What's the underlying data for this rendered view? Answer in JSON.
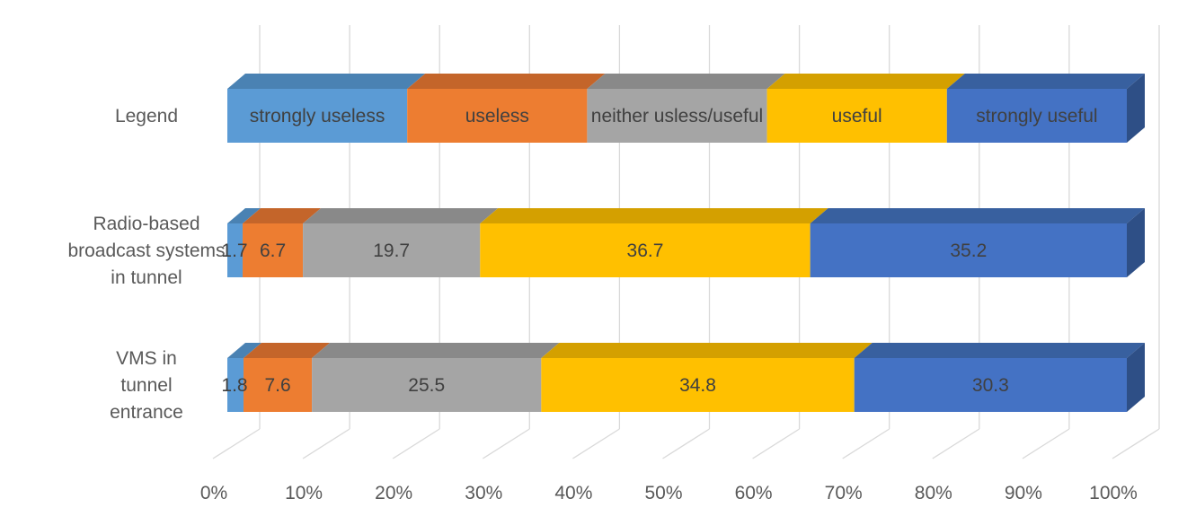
{
  "chart_data": {
    "type": "bar",
    "orientation": "horizontal",
    "stacked": "100%",
    "three_d": true,
    "grid": true,
    "x_ticks": [
      "0%",
      "10%",
      "20%",
      "30%",
      "40%",
      "50%",
      "60%",
      "70%",
      "80%",
      "90%",
      "100%"
    ],
    "xlim": [
      0,
      100
    ],
    "categories": [
      {
        "lines": [
          "Legend"
        ]
      },
      {
        "lines": [
          "Radio-based",
          "broadcast systems",
          "in tunnel"
        ]
      },
      {
        "lines": [
          "VMS in",
          "tunnel",
          "entrance"
        ]
      }
    ],
    "colors": [
      "#5b9bd5",
      "#ed7d31",
      "#a5a5a5",
      "#ffc000",
      "#4472c4"
    ],
    "top_colors": [
      "#4a82b3",
      "#c4652a",
      "#898989",
      "#d4a000",
      "#38609f"
    ],
    "side_colors": [
      "#3f70a0",
      "#a85524",
      "#757575",
      "#b58a00",
      "#2e4f86"
    ],
    "rows": [
      {
        "values": [
          20,
          20,
          20,
          20,
          20
        ],
        "labels": [
          "strongly useless",
          "useless",
          "neither usless/useful",
          "useful",
          "strongly useful"
        ]
      },
      {
        "values": [
          1.7,
          6.7,
          19.7,
          36.7,
          35.2
        ],
        "labels": [
          "1.7",
          "6.7",
          "19.7",
          "36.7",
          "35.2"
        ]
      },
      {
        "values": [
          1.8,
          7.6,
          25.5,
          34.8,
          30.3
        ],
        "labels": [
          "1.8",
          "7.6",
          "25.5",
          "34.8",
          "30.3"
        ]
      }
    ]
  }
}
